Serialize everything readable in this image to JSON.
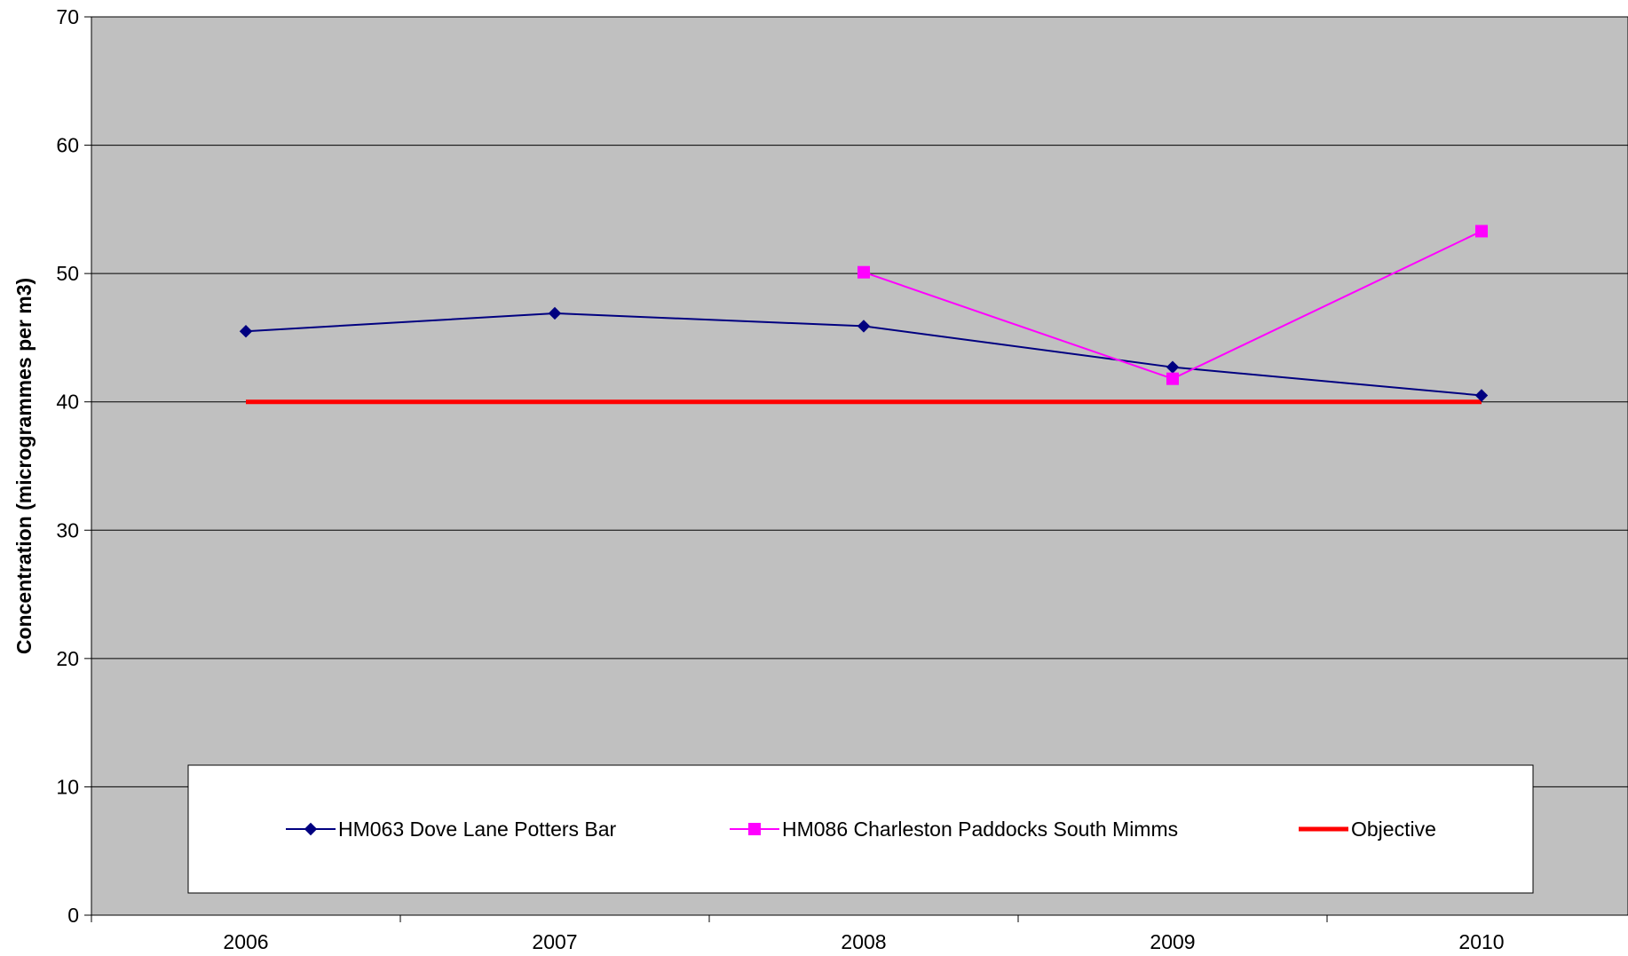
{
  "chart_data": {
    "type": "line",
    "title": "",
    "xlabel": "",
    "ylabel": "Concentration (microgrammes per m3)",
    "categories": [
      "2006",
      "2007",
      "2008",
      "2009",
      "2010"
    ],
    "ylim": [
      0,
      70
    ],
    "yticks": [
      0,
      10,
      20,
      30,
      40,
      50,
      60,
      70
    ],
    "grid": true,
    "legend_position": "bottom-inside",
    "plot_background": "#c0c0c0",
    "series": [
      {
        "name": "HM063 Dove Lane Potters Bar",
        "values": [
          45.5,
          46.9,
          45.9,
          42.7,
          40.5
        ],
        "color": "#000080",
        "marker": "diamond",
        "line_width": 2
      },
      {
        "name": "HM086 Charleston Paddocks South Mimms",
        "values": [
          null,
          null,
          50.1,
          41.8,
          53.3
        ],
        "color": "#ff00ff",
        "marker": "square",
        "line_width": 2
      },
      {
        "name": "Objective",
        "values": [
          40,
          40,
          40,
          40,
          40
        ],
        "color": "#ff0000",
        "marker": "none",
        "line_width": 5
      }
    ]
  }
}
